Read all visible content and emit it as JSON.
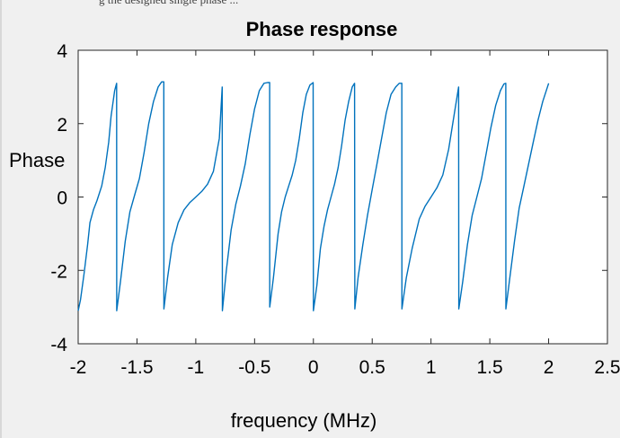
{
  "caption_fragment": "g the designed single phase ...",
  "chart_data": {
    "type": "line",
    "title": "Phase response",
    "xlabel": "frequency (MHz)",
    "ylabel": "Phase",
    "xlim": [
      -2,
      2.5
    ],
    "ylim": [
      -4,
      4
    ],
    "xticks": [
      "-2",
      "-1.5",
      "-1",
      "-0.5",
      "0",
      "0.5",
      "1",
      "1.5",
      "2",
      "2.5"
    ],
    "yticks": [
      "4",
      "2",
      "0",
      "-2",
      "-4"
    ],
    "grid": false,
    "line_color": "#0072bd",
    "series": [
      {
        "x": [
          -2.0,
          -1.98,
          -1.95,
          -1.92,
          -1.9,
          -1.87,
          -1.84,
          -1.8,
          -1.77,
          -1.74,
          -1.72,
          -1.69,
          -1.673,
          -1.672,
          -1.64,
          -1.6,
          -1.56,
          -1.52,
          -1.48,
          -1.44,
          -1.4,
          -1.36,
          -1.32,
          -1.29,
          -1.272,
          -1.271,
          -1.24,
          -1.2,
          -1.15,
          -1.1,
          -1.05,
          -1.0,
          -0.95,
          -0.9,
          -0.85,
          -0.8,
          -0.775,
          -0.774,
          -0.74,
          -0.7,
          -0.66,
          -0.62,
          -0.58,
          -0.54,
          -0.5,
          -0.46,
          -0.42,
          -0.39,
          -0.372,
          -0.371,
          -0.34,
          -0.3,
          -0.27,
          -0.24,
          -0.21,
          -0.18,
          -0.15,
          -0.12,
          -0.09,
          -0.06,
          -0.03,
          -0.002,
          0.0,
          0.03,
          0.06,
          0.09,
          0.12,
          0.15,
          0.18,
          0.21,
          0.24,
          0.27,
          0.3,
          0.33,
          0.35,
          0.352,
          0.38,
          0.42,
          0.46,
          0.5,
          0.54,
          0.58,
          0.62,
          0.66,
          0.7,
          0.73,
          0.752,
          0.753,
          0.79,
          0.84,
          0.9,
          0.95,
          1.0,
          1.05,
          1.1,
          1.15,
          1.2,
          1.235,
          1.236,
          1.27,
          1.31,
          1.35,
          1.39,
          1.43,
          1.47,
          1.51,
          1.55,
          1.59,
          1.62,
          1.636,
          1.637,
          1.67,
          1.71,
          1.75,
          1.79,
          1.83,
          1.87,
          1.91,
          1.95,
          2.0
        ],
        "y": [
          -3.1,
          -2.8,
          -2.1,
          -1.3,
          -0.7,
          -0.35,
          -0.1,
          0.3,
          0.8,
          1.5,
          2.2,
          2.9,
          3.1,
          -3.1,
          -2.3,
          -1.2,
          -0.4,
          0.05,
          0.5,
          1.2,
          2.0,
          2.6,
          3.0,
          3.14,
          3.14,
          -3.05,
          -2.2,
          -1.3,
          -0.7,
          -0.35,
          -0.15,
          0.0,
          0.15,
          0.35,
          0.7,
          1.6,
          3.0,
          -3.1,
          -2.0,
          -0.9,
          -0.2,
          0.3,
          0.9,
          1.7,
          2.4,
          2.9,
          3.1,
          3.12,
          3.12,
          -3.0,
          -2.2,
          -1.0,
          -0.4,
          0.0,
          0.3,
          0.6,
          1.0,
          1.6,
          2.3,
          2.8,
          3.05,
          3.12,
          -3.1,
          -2.4,
          -1.4,
          -0.8,
          -0.35,
          0.0,
          0.35,
          0.8,
          1.4,
          2.1,
          2.6,
          3.0,
          3.1,
          -3.05,
          -2.2,
          -1.3,
          -0.5,
          0.2,
          0.9,
          1.6,
          2.3,
          2.8,
          3.0,
          3.1,
          3.1,
          -3.05,
          -2.2,
          -1.4,
          -0.6,
          -0.25,
          0.0,
          0.25,
          0.6,
          1.3,
          2.3,
          3.0,
          -3.05,
          -2.3,
          -1.3,
          -0.5,
          0.0,
          0.5,
          1.2,
          1.9,
          2.5,
          2.9,
          3.08,
          3.1,
          -3.05,
          -2.2,
          -1.2,
          -0.3,
          0.3,
          0.9,
          1.5,
          2.1,
          2.6,
          3.1
        ]
      }
    ]
  }
}
